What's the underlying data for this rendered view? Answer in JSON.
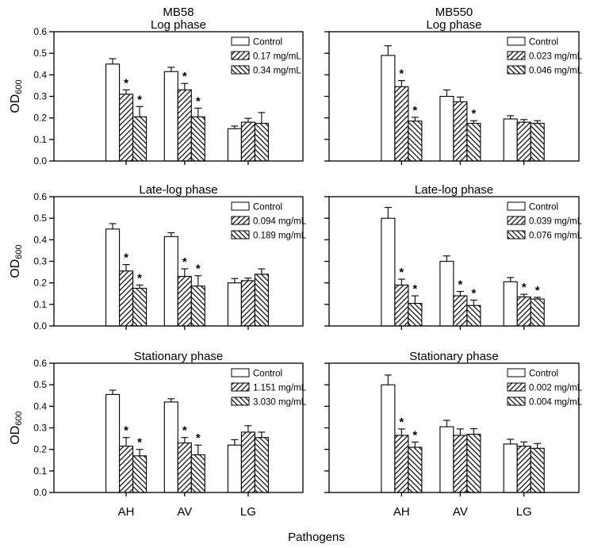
{
  "figure": {
    "xlabel": "Pathogens",
    "ylabel": {
      "main": "OD",
      "sub": "600"
    },
    "yticks": [
      "0.0",
      "0.1",
      "0.2",
      "0.3",
      "0.4",
      "0.5",
      "0.6"
    ],
    "sig_marker": "*",
    "column_titles": [
      "MB58",
      "MB550"
    ],
    "colors": {
      "ink": "#000000",
      "bar_fill": "#ffffff",
      "background": "#ffffff"
    }
  },
  "chart_data": [
    {
      "type": "bar",
      "column": "MB58",
      "title": "Log phase",
      "categories": [
        "AH",
        "AV",
        "LG"
      ],
      "ylim": [
        0,
        0.6
      ],
      "grid": false,
      "legend_position": "top-right",
      "series": [
        {
          "name": "Control",
          "hatch": "none",
          "values": [
            0.45,
            0.415,
            0.15
          ],
          "errors": [
            0.025,
            0.02,
            0.012
          ],
          "significant": [
            false,
            false,
            false
          ]
        },
        {
          "name": "0.17 mg/mL",
          "hatch": "forward-diagonal",
          "values": [
            0.31,
            0.33,
            0.18
          ],
          "errors": [
            0.02,
            0.03,
            0.018
          ],
          "significant": [
            true,
            true,
            false
          ]
        },
        {
          "name": "0.34 mg/mL",
          "hatch": "backward-diagonal",
          "values": [
            0.205,
            0.205,
            0.175
          ],
          "errors": [
            0.048,
            0.04,
            0.05
          ],
          "significant": [
            true,
            true,
            false
          ]
        }
      ]
    },
    {
      "type": "bar",
      "column": "MB550",
      "title": "Log phase",
      "categories": [
        "AH",
        "AV",
        "LG"
      ],
      "ylim": [
        0,
        0.6
      ],
      "grid": false,
      "legend_position": "top-right",
      "series": [
        {
          "name": "Control",
          "hatch": "none",
          "values": [
            0.49,
            0.3,
            0.195
          ],
          "errors": [
            0.045,
            0.03,
            0.015
          ],
          "significant": [
            false,
            false,
            false
          ]
        },
        {
          "name": "0.023 mg/mL",
          "hatch": "forward-diagonal",
          "values": [
            0.345,
            0.275,
            0.18
          ],
          "errors": [
            0.028,
            0.022,
            0.012
          ],
          "significant": [
            true,
            false,
            false
          ]
        },
        {
          "name": "0.046 mg/mL",
          "hatch": "backward-diagonal",
          "values": [
            0.185,
            0.175,
            0.175
          ],
          "errors": [
            0.018,
            0.012,
            0.012
          ],
          "significant": [
            true,
            true,
            false
          ]
        }
      ]
    },
    {
      "type": "bar",
      "column": "MB58",
      "title": "Late-log phase",
      "categories": [
        "AH",
        "AV",
        "LG"
      ],
      "ylim": [
        0,
        0.6
      ],
      "grid": false,
      "legend_position": "top-right",
      "series": [
        {
          "name": "Control",
          "hatch": "none",
          "values": [
            0.45,
            0.415,
            0.2
          ],
          "errors": [
            0.025,
            0.018,
            0.02
          ],
          "significant": [
            false,
            false,
            false
          ]
        },
        {
          "name": "0.094 mg/mL",
          "hatch": "forward-diagonal",
          "values": [
            0.255,
            0.23,
            0.21
          ],
          "errors": [
            0.03,
            0.035,
            0.012
          ],
          "significant": [
            true,
            true,
            false
          ]
        },
        {
          "name": "0.189 mg/mL",
          "hatch": "backward-diagonal",
          "values": [
            0.175,
            0.185,
            0.24
          ],
          "errors": [
            0.015,
            0.048,
            0.025
          ],
          "significant": [
            true,
            true,
            false
          ]
        }
      ]
    },
    {
      "type": "bar",
      "column": "MB550",
      "title": "Late-log phase",
      "categories": [
        "AH",
        "AV",
        "LG"
      ],
      "ylim": [
        0,
        0.6
      ],
      "grid": false,
      "legend_position": "top-right",
      "series": [
        {
          "name": "Control",
          "hatch": "none",
          "values": [
            0.5,
            0.3,
            0.205
          ],
          "errors": [
            0.05,
            0.025,
            0.02
          ],
          "significant": [
            false,
            false,
            false
          ]
        },
        {
          "name": "0.039 mg/mL",
          "hatch": "forward-diagonal",
          "values": [
            0.19,
            0.14,
            0.135
          ],
          "errors": [
            0.027,
            0.02,
            0.012
          ],
          "significant": [
            true,
            true,
            true
          ]
        },
        {
          "name": "0.076 mg/mL",
          "hatch": "backward-diagonal",
          "values": [
            0.105,
            0.095,
            0.125
          ],
          "errors": [
            0.035,
            0.025,
            0.008
          ],
          "significant": [
            true,
            true,
            true
          ]
        }
      ]
    },
    {
      "type": "bar",
      "column": "MB58",
      "title": "Stationary phase",
      "categories": [
        "AH",
        "AV",
        "LG"
      ],
      "ylim": [
        0,
        0.6
      ],
      "grid": false,
      "legend_position": "top-right",
      "series": [
        {
          "name": "Control",
          "hatch": "none",
          "values": [
            0.455,
            0.42,
            0.22
          ],
          "errors": [
            0.02,
            0.015,
            0.025
          ],
          "significant": [
            false,
            false,
            false
          ]
        },
        {
          "name": "1.151 mg/mL",
          "hatch": "forward-diagonal",
          "values": [
            0.215,
            0.23,
            0.28
          ],
          "errors": [
            0.04,
            0.025,
            0.03
          ],
          "significant": [
            true,
            true,
            false
          ]
        },
        {
          "name": "3.030 mg/mL",
          "hatch": "backward-diagonal",
          "values": [
            0.17,
            0.175,
            0.255
          ],
          "errors": [
            0.03,
            0.045,
            0.025
          ],
          "significant": [
            true,
            true,
            false
          ]
        }
      ]
    },
    {
      "type": "bar",
      "column": "MB550",
      "title": "Stationary phase",
      "categories": [
        "AH",
        "AV",
        "LG"
      ],
      "ylim": [
        0,
        0.6
      ],
      "grid": false,
      "legend_position": "top-right",
      "series": [
        {
          "name": "Control",
          "hatch": "none",
          "values": [
            0.5,
            0.305,
            0.225
          ],
          "errors": [
            0.045,
            0.03,
            0.022
          ],
          "significant": [
            false,
            false,
            false
          ]
        },
        {
          "name": "0.002 mg/mL",
          "hatch": "forward-diagonal",
          "values": [
            0.265,
            0.265,
            0.215
          ],
          "errors": [
            0.03,
            0.03,
            0.02
          ],
          "significant": [
            true,
            false,
            false
          ]
        },
        {
          "name": "0.004 mg/mL",
          "hatch": "backward-diagonal",
          "values": [
            0.21,
            0.27,
            0.205
          ],
          "errors": [
            0.024,
            0.026,
            0.022
          ],
          "significant": [
            true,
            false,
            false
          ]
        }
      ]
    }
  ]
}
